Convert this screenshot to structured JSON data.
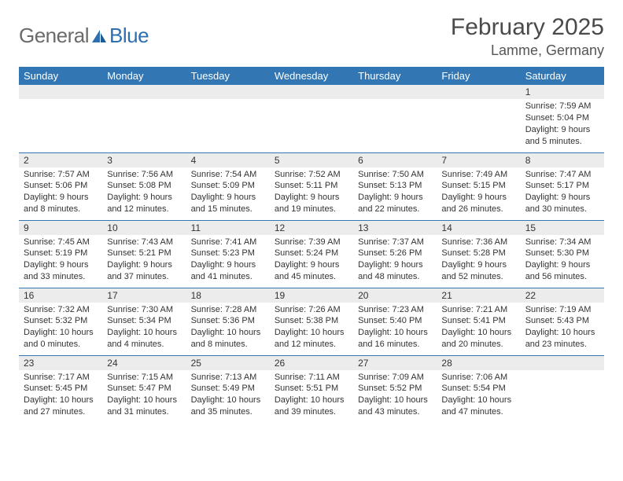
{
  "logo": {
    "general": "General",
    "blue": "Blue"
  },
  "title": "February 2025",
  "location": "Lamme, Germany",
  "colors": {
    "header_bg": "#3277b3",
    "header_text": "#ffffff",
    "daynum_bg": "#ececec",
    "row_border": "#3277b3",
    "logo_general": "#6b6b6b",
    "logo_blue": "#2f6fb0"
  },
  "weekday_labels": [
    "Sunday",
    "Monday",
    "Tuesday",
    "Wednesday",
    "Thursday",
    "Friday",
    "Saturday"
  ],
  "weeks": [
    [
      {
        "day": "",
        "sunrise": "",
        "sunset": "",
        "daylight": ""
      },
      {
        "day": "",
        "sunrise": "",
        "sunset": "",
        "daylight": ""
      },
      {
        "day": "",
        "sunrise": "",
        "sunset": "",
        "daylight": ""
      },
      {
        "day": "",
        "sunrise": "",
        "sunset": "",
        "daylight": ""
      },
      {
        "day": "",
        "sunrise": "",
        "sunset": "",
        "daylight": ""
      },
      {
        "day": "",
        "sunrise": "",
        "sunset": "",
        "daylight": ""
      },
      {
        "day": "1",
        "sunrise": "7:59 AM",
        "sunset": "5:04 PM",
        "daylight": "9 hours and 5 minutes."
      }
    ],
    [
      {
        "day": "2",
        "sunrise": "7:57 AM",
        "sunset": "5:06 PM",
        "daylight": "9 hours and 8 minutes."
      },
      {
        "day": "3",
        "sunrise": "7:56 AM",
        "sunset": "5:08 PM",
        "daylight": "9 hours and 12 minutes."
      },
      {
        "day": "4",
        "sunrise": "7:54 AM",
        "sunset": "5:09 PM",
        "daylight": "9 hours and 15 minutes."
      },
      {
        "day": "5",
        "sunrise": "7:52 AM",
        "sunset": "5:11 PM",
        "daylight": "9 hours and 19 minutes."
      },
      {
        "day": "6",
        "sunrise": "7:50 AM",
        "sunset": "5:13 PM",
        "daylight": "9 hours and 22 minutes."
      },
      {
        "day": "7",
        "sunrise": "7:49 AM",
        "sunset": "5:15 PM",
        "daylight": "9 hours and 26 minutes."
      },
      {
        "day": "8",
        "sunrise": "7:47 AM",
        "sunset": "5:17 PM",
        "daylight": "9 hours and 30 minutes."
      }
    ],
    [
      {
        "day": "9",
        "sunrise": "7:45 AM",
        "sunset": "5:19 PM",
        "daylight": "9 hours and 33 minutes."
      },
      {
        "day": "10",
        "sunrise": "7:43 AM",
        "sunset": "5:21 PM",
        "daylight": "9 hours and 37 minutes."
      },
      {
        "day": "11",
        "sunrise": "7:41 AM",
        "sunset": "5:23 PM",
        "daylight": "9 hours and 41 minutes."
      },
      {
        "day": "12",
        "sunrise": "7:39 AM",
        "sunset": "5:24 PM",
        "daylight": "9 hours and 45 minutes."
      },
      {
        "day": "13",
        "sunrise": "7:37 AM",
        "sunset": "5:26 PM",
        "daylight": "9 hours and 48 minutes."
      },
      {
        "day": "14",
        "sunrise": "7:36 AM",
        "sunset": "5:28 PM",
        "daylight": "9 hours and 52 minutes."
      },
      {
        "day": "15",
        "sunrise": "7:34 AM",
        "sunset": "5:30 PM",
        "daylight": "9 hours and 56 minutes."
      }
    ],
    [
      {
        "day": "16",
        "sunrise": "7:32 AM",
        "sunset": "5:32 PM",
        "daylight": "10 hours and 0 minutes."
      },
      {
        "day": "17",
        "sunrise": "7:30 AM",
        "sunset": "5:34 PM",
        "daylight": "10 hours and 4 minutes."
      },
      {
        "day": "18",
        "sunrise": "7:28 AM",
        "sunset": "5:36 PM",
        "daylight": "10 hours and 8 minutes."
      },
      {
        "day": "19",
        "sunrise": "7:26 AM",
        "sunset": "5:38 PM",
        "daylight": "10 hours and 12 minutes."
      },
      {
        "day": "20",
        "sunrise": "7:23 AM",
        "sunset": "5:40 PM",
        "daylight": "10 hours and 16 minutes."
      },
      {
        "day": "21",
        "sunrise": "7:21 AM",
        "sunset": "5:41 PM",
        "daylight": "10 hours and 20 minutes."
      },
      {
        "day": "22",
        "sunrise": "7:19 AM",
        "sunset": "5:43 PM",
        "daylight": "10 hours and 23 minutes."
      }
    ],
    [
      {
        "day": "23",
        "sunrise": "7:17 AM",
        "sunset": "5:45 PM",
        "daylight": "10 hours and 27 minutes."
      },
      {
        "day": "24",
        "sunrise": "7:15 AM",
        "sunset": "5:47 PM",
        "daylight": "10 hours and 31 minutes."
      },
      {
        "day": "25",
        "sunrise": "7:13 AM",
        "sunset": "5:49 PM",
        "daylight": "10 hours and 35 minutes."
      },
      {
        "day": "26",
        "sunrise": "7:11 AM",
        "sunset": "5:51 PM",
        "daylight": "10 hours and 39 minutes."
      },
      {
        "day": "27",
        "sunrise": "7:09 AM",
        "sunset": "5:52 PM",
        "daylight": "10 hours and 43 minutes."
      },
      {
        "day": "28",
        "sunrise": "7:06 AM",
        "sunset": "5:54 PM",
        "daylight": "10 hours and 47 minutes."
      },
      {
        "day": "",
        "sunrise": "",
        "sunset": "",
        "daylight": ""
      }
    ]
  ]
}
